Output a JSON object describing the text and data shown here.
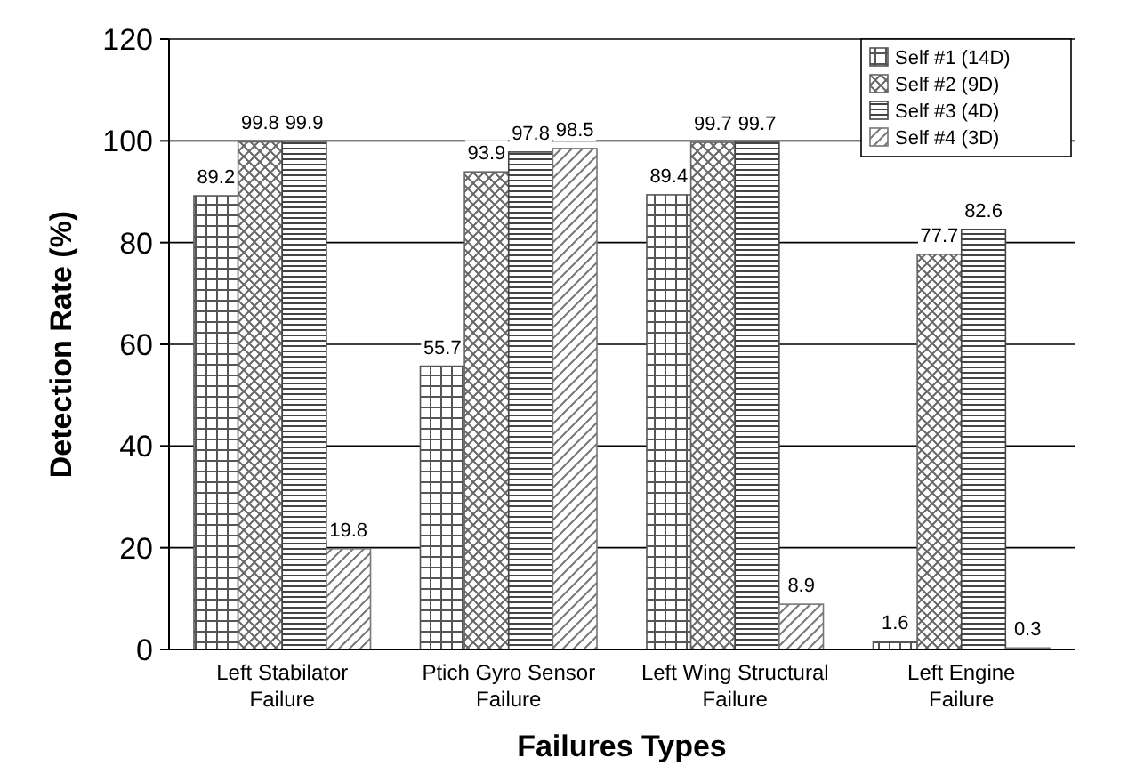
{
  "chart_data": {
    "type": "bar",
    "xlabel": "Failures Types",
    "ylabel": "Detection Rate (%)",
    "categories": [
      "Left Stabilator Failure",
      "Ptich Gyro Sensor Failure",
      "Left Wing Structural Failure",
      "Left Engine Failure"
    ],
    "series": [
      {
        "name": "Self #1 (14D)",
        "color": "#555555",
        "values": [
          89.2,
          55.7,
          89.4,
          1.6
        ]
      },
      {
        "name": "Self #2 (9D)",
        "color": "#666666",
        "values": [
          99.8,
          93.9,
          99.7,
          77.7
        ]
      },
      {
        "name": "Self #3 (4D)",
        "color": "#444444",
        "values": [
          99.9,
          97.8,
          99.7,
          82.6
        ]
      },
      {
        "name": "Self #4 (3D)",
        "color": "#777777",
        "values": [
          19.8,
          98.5,
          8.9,
          0.3
        ]
      }
    ],
    "ylim": [
      0,
      120
    ],
    "yticks": [
      0,
      20,
      40,
      60,
      80,
      100,
      120
    ],
    "grid": "y",
    "legend": "top right",
    "data_labels": true
  }
}
